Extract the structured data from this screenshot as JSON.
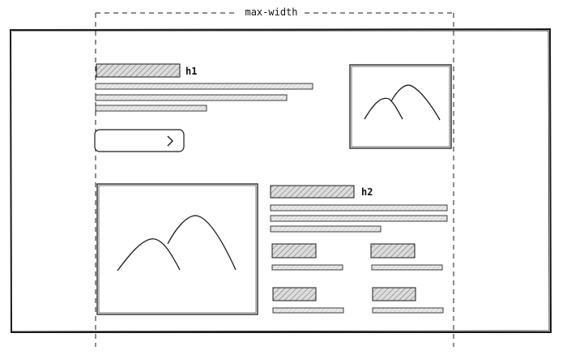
{
  "annotations": {
    "container_label": "max-width",
    "heading_1": "h1",
    "heading_2": "h2"
  },
  "colors": {
    "stroke": "#1a1a1a",
    "placeholder_fill": "#e6e6e6",
    "hatch": "#777777",
    "background": "#ffffff"
  },
  "icons": {
    "cta_arrow": "chevron-right-icon",
    "image_placeholder": "mountain-image-icon"
  }
}
